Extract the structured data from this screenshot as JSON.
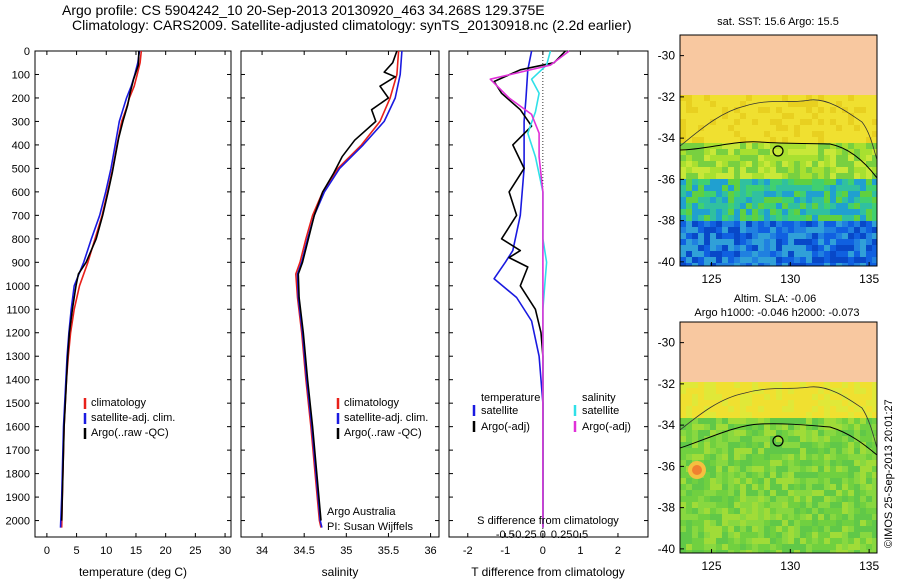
{
  "header": {
    "line1": "Argo profile: CS 5904242_10 20-Sep-2013 20130920_463 34.268S 129.375E",
    "line2": "Climatology: CARS2009. Satellite-adjusted climatology: synTS_20130918.nc (2.2d earlier)"
  },
  "colors": {
    "climatology": "#e8201a",
    "satellite": "#1a1ae0",
    "argo": "#000000",
    "salinity_satellite": "#30e0e8",
    "salinity_argo": "#e030d8",
    "land": "#f8c8a0"
  },
  "map_top": {
    "title": "sat. SST: 15.6  Argo: 15.5"
  },
  "map_bottom": {
    "title1": "Altim. SLA: -0.06",
    "title2": "Argo h1000: -0.046  h2000: -0.073"
  },
  "side_label": "©IMOS 25-Sep-2013 20:01:27",
  "chart_data": [
    {
      "type": "line",
      "xlabel": "temperature (deg C)",
      "xlim": [
        -2,
        31
      ],
      "ylim": [
        2070,
        0
      ],
      "xticks": [
        0,
        5,
        10,
        15,
        20,
        25,
        30
      ],
      "yticks": [
        0,
        100,
        200,
        300,
        400,
        500,
        600,
        700,
        800,
        900,
        1000,
        1100,
        1200,
        1300,
        1400,
        1500,
        1600,
        1700,
        1800,
        1900,
        2000
      ],
      "legend": [
        "climatology",
        "satellite-adj. clim.",
        "Argo(..raw -QC)"
      ],
      "series": [
        {
          "name": "climatology",
          "color": "#e8201a",
          "points": [
            [
              15.9,
              0
            ],
            [
              15.7,
              50
            ],
            [
              15.2,
              100
            ],
            [
              14.7,
              150
            ],
            [
              13.9,
              200
            ],
            [
              13.3,
              250
            ],
            [
              12.6,
              300
            ],
            [
              11.8,
              400
            ],
            [
              11.1,
              500
            ],
            [
              10.2,
              600
            ],
            [
              9.3,
              700
            ],
            [
              8.1,
              800
            ],
            [
              6.9,
              900
            ],
            [
              5.5,
              1000
            ],
            [
              4.6,
              1100
            ],
            [
              4.0,
              1200
            ],
            [
              3.6,
              1300
            ],
            [
              3.3,
              1400
            ],
            [
              3.1,
              1500
            ],
            [
              2.9,
              1600
            ],
            [
              2.8,
              1700
            ],
            [
              2.7,
              1800
            ],
            [
              2.6,
              1900
            ],
            [
              2.5,
              2030
            ]
          ]
        },
        {
          "name": "satellite-adj. clim.",
          "color": "#1a1ae0",
          "points": [
            [
              15.6,
              0
            ],
            [
              15.3,
              50
            ],
            [
              14.8,
              100
            ],
            [
              14.2,
              150
            ],
            [
              13.4,
              200
            ],
            [
              12.8,
              250
            ],
            [
              12.2,
              300
            ],
            [
              11.5,
              400
            ],
            [
              10.8,
              500
            ],
            [
              9.9,
              600
            ],
            [
              8.9,
              700
            ],
            [
              7.5,
              800
            ],
            [
              6.2,
              900
            ],
            [
              4.6,
              1000
            ],
            [
              4.1,
              1100
            ],
            [
              3.7,
              1200
            ],
            [
              3.4,
              1300
            ],
            [
              3.2,
              1400
            ],
            [
              3.0,
              1500
            ],
            [
              2.8,
              1600
            ],
            [
              2.7,
              1700
            ],
            [
              2.6,
              1800
            ],
            [
              2.5,
              1900
            ],
            [
              2.3,
              2030
            ]
          ]
        },
        {
          "name": "Argo(..raw -QC)",
          "color": "#000000",
          "points": [
            [
              15.5,
              0
            ],
            [
              15.4,
              60
            ],
            [
              14.6,
              120
            ],
            [
              14.0,
              180
            ],
            [
              13.6,
              230
            ],
            [
              12.8,
              300
            ],
            [
              12.1,
              370
            ],
            [
              11.5,
              450
            ],
            [
              11.0,
              520
            ],
            [
              10.3,
              600
            ],
            [
              9.4,
              700
            ],
            [
              8.3,
              800
            ],
            [
              6.6,
              900
            ],
            [
              5.3,
              950
            ],
            [
              4.9,
              1000
            ],
            [
              4.3,
              1100
            ],
            [
              3.8,
              1200
            ],
            [
              3.5,
              1300
            ],
            [
              3.3,
              1400
            ],
            [
              3.1,
              1500
            ],
            [
              2.9,
              1600
            ],
            [
              2.8,
              1700
            ],
            [
              2.7,
              1800
            ],
            [
              2.6,
              1900
            ],
            [
              2.5,
              2000
            ]
          ]
        }
      ]
    },
    {
      "type": "line",
      "xlabel": "salinity",
      "xlim": [
        33.75,
        36.1
      ],
      "ylim": [
        2070,
        0
      ],
      "xticks": [
        34,
        34.5,
        35,
        35.5,
        36
      ],
      "legend": [
        "climatology",
        "satellite-adj. clim.",
        "Argo(..raw -QC)"
      ],
      "annotation1": "Argo Australia",
      "annotation2": "PI: Susan Wijffels",
      "series": [
        {
          "name": "climatology",
          "color": "#e8201a",
          "points": [
            [
              35.62,
              0
            ],
            [
              35.6,
              100
            ],
            [
              35.52,
              200
            ],
            [
              35.4,
              300
            ],
            [
              35.18,
              400
            ],
            [
              34.9,
              500
            ],
            [
              34.72,
              600
            ],
            [
              34.6,
              700
            ],
            [
              34.52,
              800
            ],
            [
              34.45,
              900
            ],
            [
              34.4,
              950
            ],
            [
              34.42,
              1050
            ],
            [
              34.47,
              1200
            ],
            [
              34.52,
              1400
            ],
            [
              34.58,
              1600
            ],
            [
              34.63,
              1800
            ],
            [
              34.68,
              2000
            ],
            [
              34.7,
              2030
            ]
          ]
        },
        {
          "name": "satellite-adj. clim.",
          "color": "#1a1ae0",
          "points": [
            [
              35.66,
              0
            ],
            [
              35.64,
              100
            ],
            [
              35.58,
              200
            ],
            [
              35.45,
              300
            ],
            [
              35.2,
              400
            ],
            [
              34.92,
              500
            ],
            [
              34.74,
              600
            ],
            [
              34.62,
              700
            ],
            [
              34.54,
              800
            ],
            [
              34.47,
              900
            ],
            [
              34.42,
              950
            ],
            [
              34.43,
              1050
            ],
            [
              34.48,
              1200
            ],
            [
              34.53,
              1400
            ],
            [
              34.59,
              1600
            ],
            [
              34.64,
              1800
            ],
            [
              34.69,
              2000
            ],
            [
              34.71,
              2030
            ]
          ]
        },
        {
          "name": "Argo(..raw -QC)",
          "color": "#000000",
          "points": [
            [
              35.6,
              0
            ],
            [
              35.55,
              50
            ],
            [
              35.45,
              90
            ],
            [
              35.58,
              110
            ],
            [
              35.4,
              150
            ],
            [
              35.5,
              200
            ],
            [
              35.3,
              250
            ],
            [
              35.35,
              300
            ],
            [
              35.1,
              380
            ],
            [
              34.95,
              450
            ],
            [
              34.85,
              520
            ],
            [
              34.72,
              600
            ],
            [
              34.62,
              700
            ],
            [
              34.55,
              800
            ],
            [
              34.48,
              900
            ],
            [
              34.43,
              950
            ],
            [
              34.44,
              1050
            ],
            [
              34.49,
              1200
            ],
            [
              34.54,
              1400
            ],
            [
              34.6,
              1600
            ],
            [
              34.65,
              1800
            ],
            [
              34.7,
              2000
            ]
          ]
        }
      ]
    },
    {
      "type": "line",
      "xlabel": "T difference from climatology",
      "xlabel_top": "S difference from climatology",
      "xlim": [
        -2.5,
        2.8
      ],
      "ylim": [
        2070,
        0
      ],
      "xticks": [
        -2,
        -1,
        0,
        1,
        2
      ],
      "xticks_top": [
        -0.5,
        -0.25,
        0,
        0.25,
        0.5
      ],
      "legend_title_left": "temperature",
      "legend_title_right": "salinity",
      "legend_left": [
        "satellite",
        "Argo(-adj)"
      ],
      "legend_right": [
        "satellite",
        "Argo(-adj)"
      ],
      "series": [
        {
          "name": "satellite",
          "color": "#1a1ae0",
          "points": [
            [
              -0.3,
              0
            ],
            [
              -0.4,
              80
            ],
            [
              -0.45,
              200
            ],
            [
              -0.5,
              300
            ],
            [
              -0.5,
              500
            ],
            [
              -0.6,
              700
            ],
            [
              -0.8,
              850
            ],
            [
              -1.0,
              900
            ],
            [
              -1.3,
              970
            ],
            [
              -0.7,
              1050
            ],
            [
              -0.3,
              1150
            ],
            [
              -0.1,
              1300
            ],
            [
              0,
              1500
            ],
            [
              0,
              2030
            ]
          ]
        },
        {
          "name": "Argo(-adj)",
          "color": "#000000",
          "points": [
            [
              0.6,
              0
            ],
            [
              0.3,
              50
            ],
            [
              -0.6,
              80
            ],
            [
              -1.3,
              130
            ],
            [
              -1.1,
              180
            ],
            [
              -0.6,
              250
            ],
            [
              -0.3,
              320
            ],
            [
              -0.8,
              400
            ],
            [
              -0.5,
              500
            ],
            [
              -0.9,
              600
            ],
            [
              -0.7,
              700
            ],
            [
              -1.1,
              800
            ],
            [
              -0.6,
              850
            ],
            [
              -0.9,
              880
            ],
            [
              -0.4,
              920
            ],
            [
              -0.6,
              1000
            ],
            [
              -0.2,
              1100
            ],
            [
              -0.05,
              1200
            ],
            [
              0,
              1300
            ],
            [
              0,
              2030
            ]
          ]
        },
        {
          "name": "salinity satellite",
          "color": "#30e0e8",
          "points": [
            [
              0.2,
              0
            ],
            [
              0.1,
              60
            ],
            [
              -0.3,
              120
            ],
            [
              -0.1,
              180
            ],
            [
              -0.2,
              260
            ],
            [
              -0.4,
              350
            ],
            [
              -0.2,
              450
            ],
            [
              0,
              600
            ],
            [
              0,
              800
            ],
            [
              0.1,
              900
            ],
            [
              0.05,
              1000
            ],
            [
              0,
              1100
            ],
            [
              0,
              2030
            ]
          ]
        },
        {
          "name": "salinity Argo(-adj)",
          "color": "#e030d8",
          "points": [
            [
              0.7,
              0
            ],
            [
              0.2,
              60
            ],
            [
              -1.4,
              120
            ],
            [
              -0.9,
              200
            ],
            [
              -0.3,
              270
            ],
            [
              -0.1,
              350
            ],
            [
              -0.1,
              450
            ],
            [
              0,
              600
            ],
            [
              0,
              2030
            ]
          ]
        }
      ]
    },
    {
      "type": "heatmap",
      "xlim": [
        123,
        135.5
      ],
      "ylim": [
        -40.2,
        -29
      ],
      "xticks": [
        125,
        130,
        135
      ],
      "yticks": [
        -30,
        -32,
        -34,
        -36,
        -38,
        -40
      ],
      "marker": [
        129.4,
        -34.3
      ]
    },
    {
      "type": "heatmap",
      "xlim": [
        123,
        135.5
      ],
      "ylim": [
        -40.2,
        -29
      ],
      "xticks": [
        125,
        130,
        135
      ],
      "yticks": [
        -30,
        -32,
        -34,
        -36,
        -38,
        -40
      ],
      "marker": [
        129.4,
        -34.3
      ]
    }
  ]
}
